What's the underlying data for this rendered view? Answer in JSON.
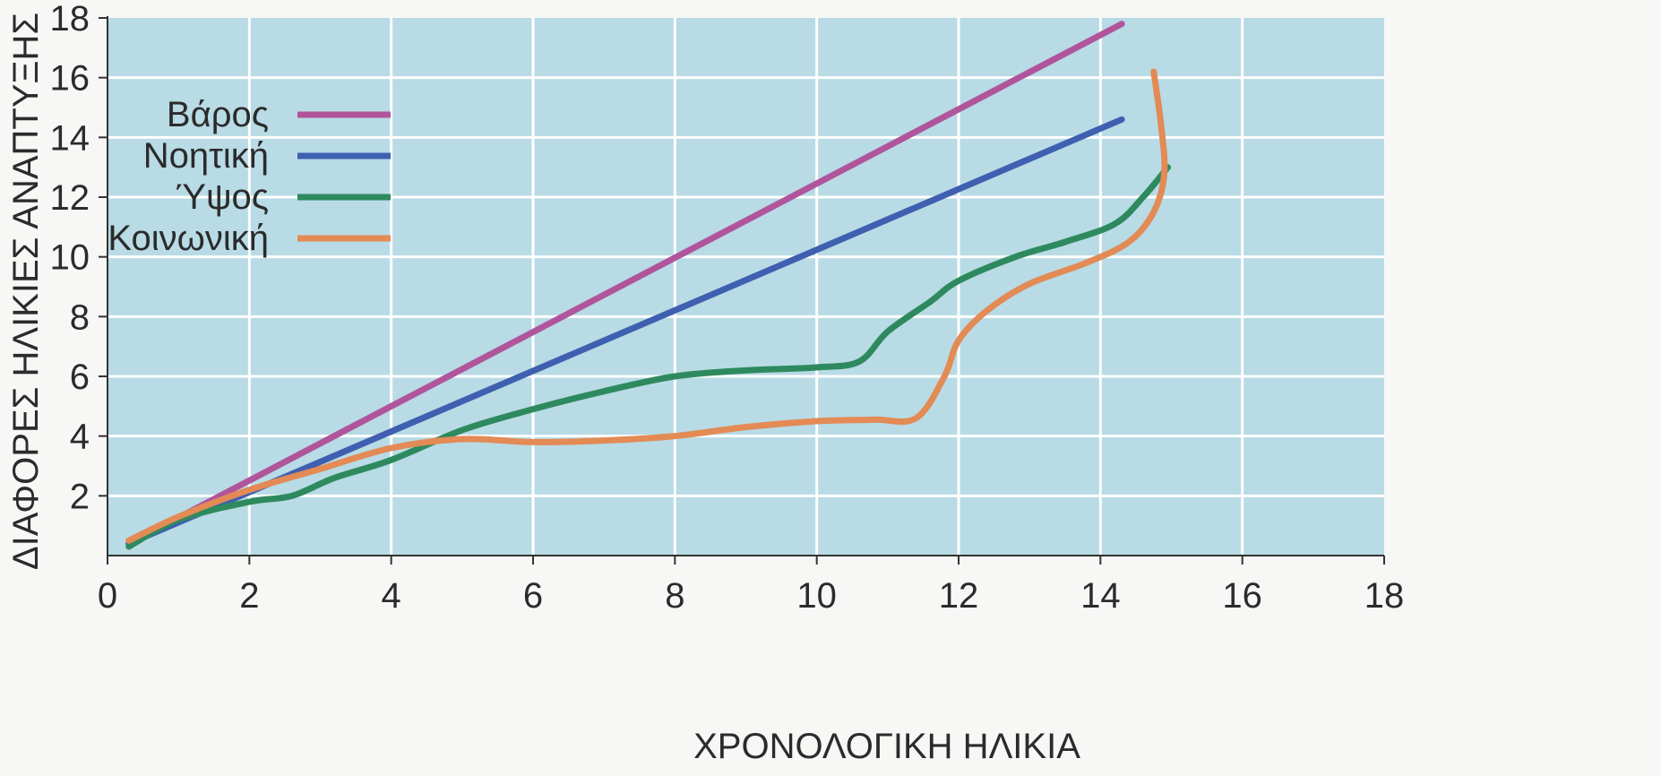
{
  "chart_data": {
    "type": "line",
    "title": "",
    "xlabel": "ΧΡΟΝΟΛΟΓΙΚΗ ΗΛΙΚΙΑ",
    "ylabel": "ΔΙΑΦΟΡΕΣ ΗΛΙΚΙΕΣ ΑΝΑΠΤΥΞΗΣ",
    "xlim": [
      0,
      18
    ],
    "ylim": [
      0,
      18
    ],
    "xticks": [
      "0",
      "2",
      "4",
      "6",
      "8",
      "10",
      "12",
      "14",
      "16",
      "18"
    ],
    "yticks": [
      "2",
      "4",
      "6",
      "8",
      "10",
      "12",
      "14",
      "16",
      "18"
    ],
    "grid": true,
    "legend_position": "top-left",
    "colors": {
      "plot_background": "#b8dbe5",
      "grid": "#ffffff",
      "axis": "#333333"
    },
    "series": [
      {
        "name": "Βάρος",
        "color": "#b0559c",
        "points": [
          [
            0.3,
            0.4
          ],
          [
            14.3,
            17.8
          ]
        ]
      },
      {
        "name": "Νοητική",
        "color": "#3f5fb0",
        "points": [
          [
            0.3,
            0.4
          ],
          [
            14.3,
            14.6
          ]
        ]
      },
      {
        "name": "Ύψος",
        "color": "#2e8a5e",
        "points": [
          [
            0.3,
            0.3
          ],
          [
            1.0,
            1.2
          ],
          [
            2.0,
            1.8
          ],
          [
            2.6,
            2.0
          ],
          [
            3.2,
            2.6
          ],
          [
            4.0,
            3.2
          ],
          [
            5.0,
            4.2
          ],
          [
            6.0,
            4.9
          ],
          [
            7.0,
            5.5
          ],
          [
            8.0,
            6.0
          ],
          [
            9.0,
            6.2
          ],
          [
            10.0,
            6.3
          ],
          [
            10.6,
            6.5
          ],
          [
            11.0,
            7.5
          ],
          [
            11.6,
            8.5
          ],
          [
            12.0,
            9.2
          ],
          [
            12.8,
            10.0
          ],
          [
            13.5,
            10.5
          ],
          [
            14.2,
            11.1
          ],
          [
            14.6,
            12.0
          ],
          [
            14.95,
            13.0
          ]
        ]
      },
      {
        "name": "Κοινωνική",
        "color": "#e38a55",
        "points": [
          [
            0.3,
            0.5
          ],
          [
            1.0,
            1.3
          ],
          [
            2.0,
            2.2
          ],
          [
            3.0,
            2.9
          ],
          [
            4.0,
            3.6
          ],
          [
            5.0,
            3.9
          ],
          [
            6.0,
            3.8
          ],
          [
            7.0,
            3.85
          ],
          [
            8.0,
            4.0
          ],
          [
            9.0,
            4.3
          ],
          [
            10.0,
            4.5
          ],
          [
            10.8,
            4.55
          ],
          [
            11.4,
            4.6
          ],
          [
            11.8,
            6.0
          ],
          [
            12.0,
            7.2
          ],
          [
            12.4,
            8.2
          ],
          [
            13.0,
            9.1
          ],
          [
            13.8,
            9.8
          ],
          [
            14.4,
            10.5
          ],
          [
            14.75,
            11.5
          ],
          [
            14.9,
            12.8
          ],
          [
            14.85,
            14.5
          ],
          [
            14.75,
            16.2
          ]
        ]
      }
    ]
  }
}
